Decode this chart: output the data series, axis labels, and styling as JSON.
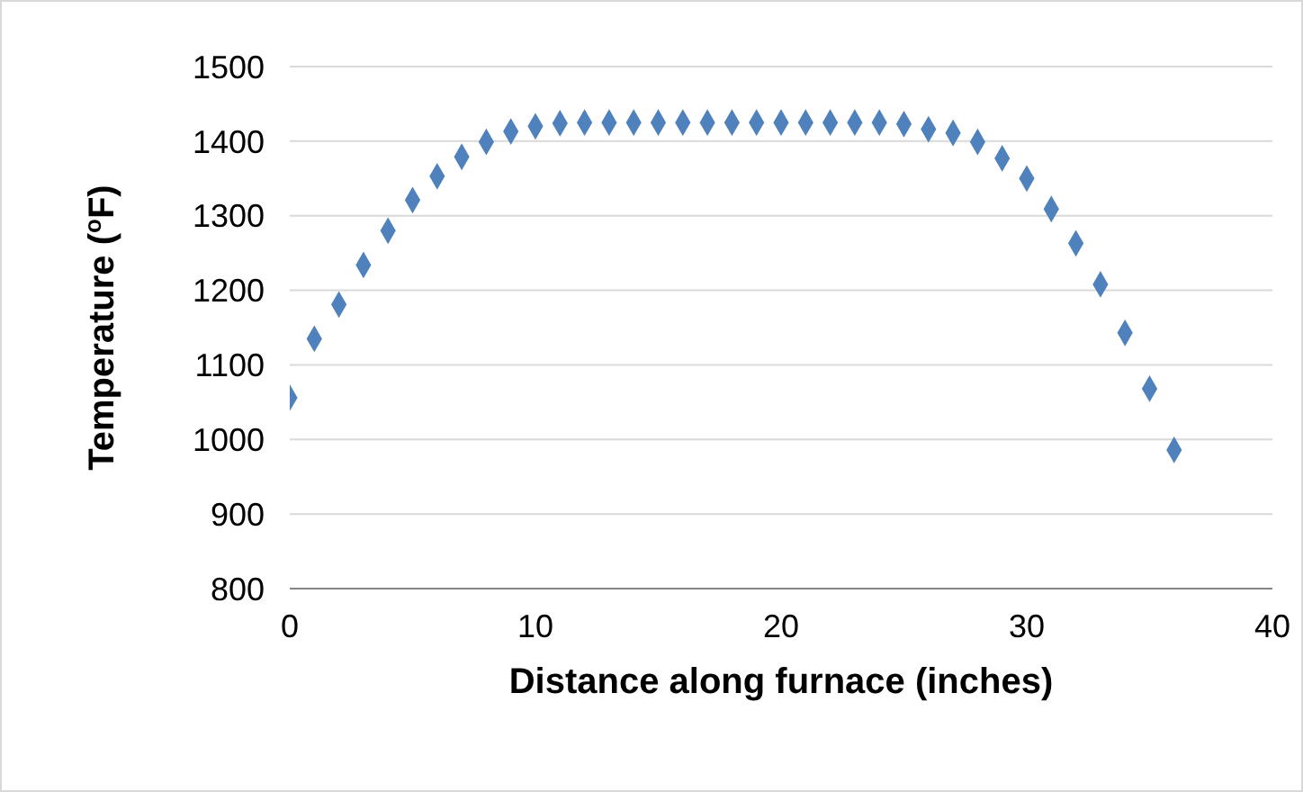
{
  "chart_data": {
    "type": "scatter",
    "xlabel": "Distance along furnace (inches)",
    "ylabel": "Temperature ($^{o}$F)",
    "x": [
      0,
      1,
      2,
      3,
      4,
      5,
      6,
      7,
      8,
      9,
      10,
      11,
      12,
      13,
      14,
      15,
      16,
      17,
      18,
      19,
      20,
      21,
      22,
      23,
      24,
      25,
      26,
      27,
      28,
      29,
      30,
      31,
      32,
      33,
      34,
      35,
      36
    ],
    "series": [
      {
        "color": "#4f81bd",
        "values": [
          1056,
          1135,
          1181,
          1234,
          1280,
          1321,
          1353,
          1379,
          1399,
          1413,
          1420,
          1424,
          1425,
          1425,
          1425,
          1425,
          1425,
          1425,
          1425,
          1425,
          1425,
          1425,
          1425,
          1425,
          1425,
          1423,
          1416,
          1411,
          1399,
          1377,
          1350,
          1309,
          1263,
          1208,
          1143,
          1068,
          986
        ]
      }
    ],
    "xlim": [
      0,
      40
    ],
    "xticks": [
      0,
      10,
      20,
      30,
      40
    ],
    "ylim": [
      800,
      1500
    ],
    "yticks": [
      800,
      900,
      1000,
      1100,
      1200,
      1300,
      1400,
      1500
    ],
    "grid": "y",
    "marker": "diamond",
    "legend": false
  }
}
